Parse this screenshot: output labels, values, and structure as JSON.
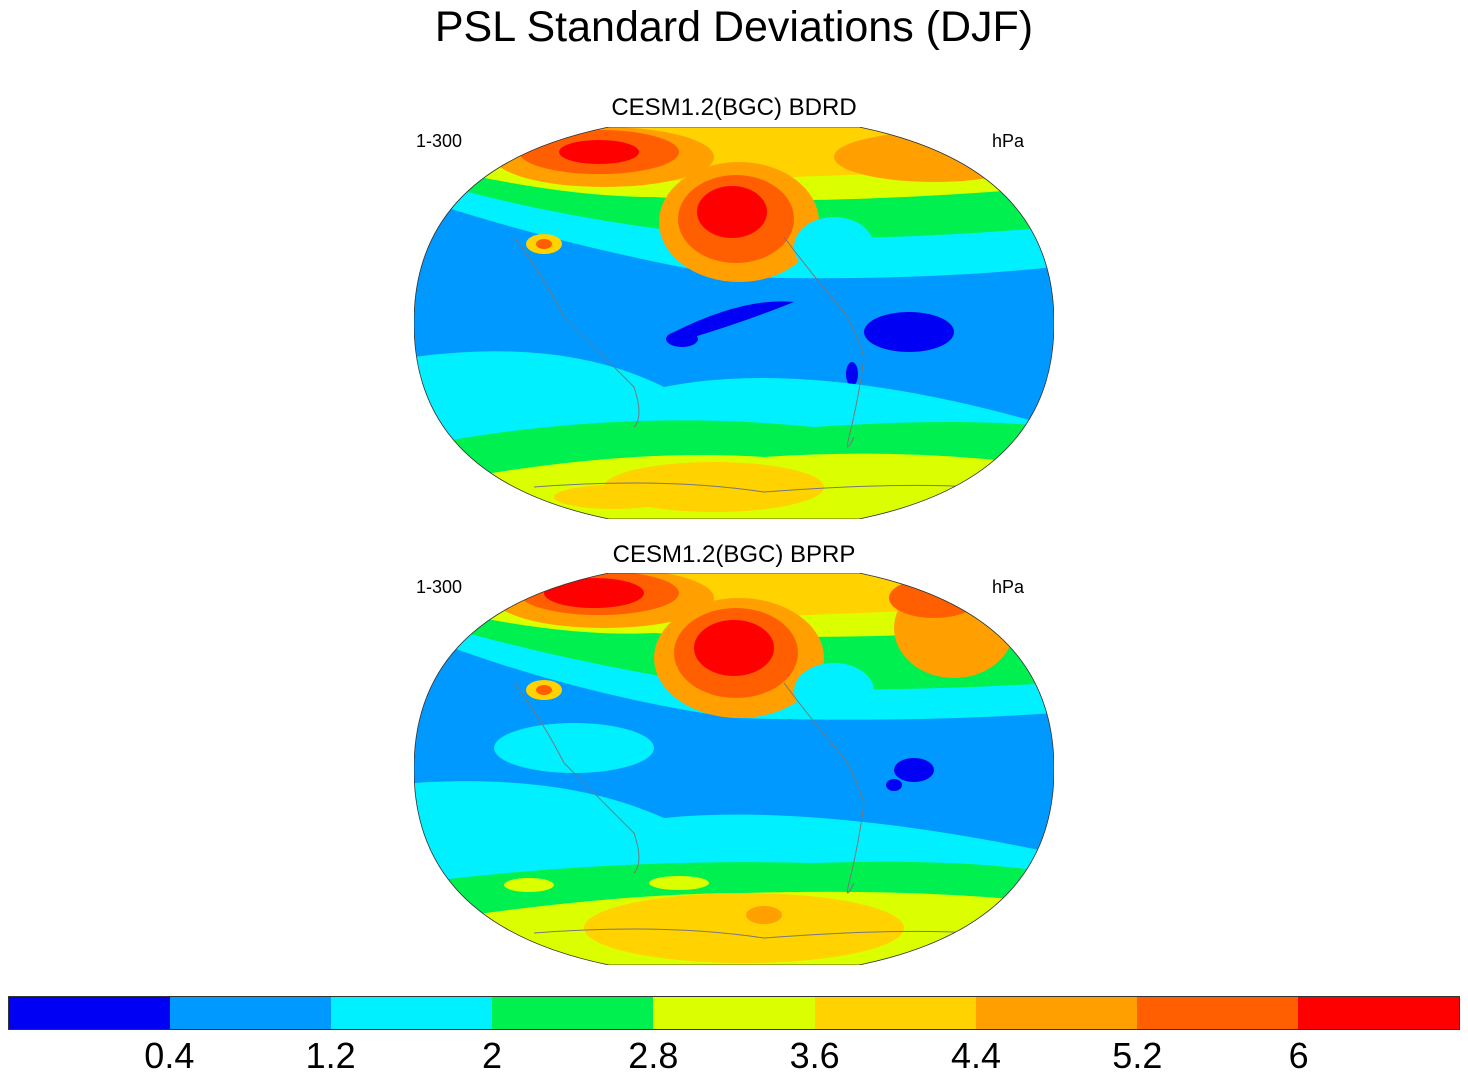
{
  "title": "PSL Standard Deviations (DJF)",
  "panels": [
    {
      "title": "CESM1.2(BGC) BDRD",
      "left_label": "1-300",
      "right_label": "hPa"
    },
    {
      "title": "CESM1.2(BGC) BPRP",
      "left_label": "1-300",
      "right_label": "hPa"
    }
  ],
  "colorbar": {
    "colors": [
      "#0000f5",
      "#0099ff",
      "#00f0ff",
      "#00f050",
      "#dcff00",
      "#ffd200",
      "#ffa000",
      "#ff5f00",
      "#ff0000"
    ],
    "tick_labels": [
      "0.4",
      "1.2",
      "2",
      "2.8",
      "3.6",
      "4.4",
      "5.2",
      "6"
    ]
  },
  "colors": {
    "coastline": "#777777",
    "background": "#ffffff"
  }
}
